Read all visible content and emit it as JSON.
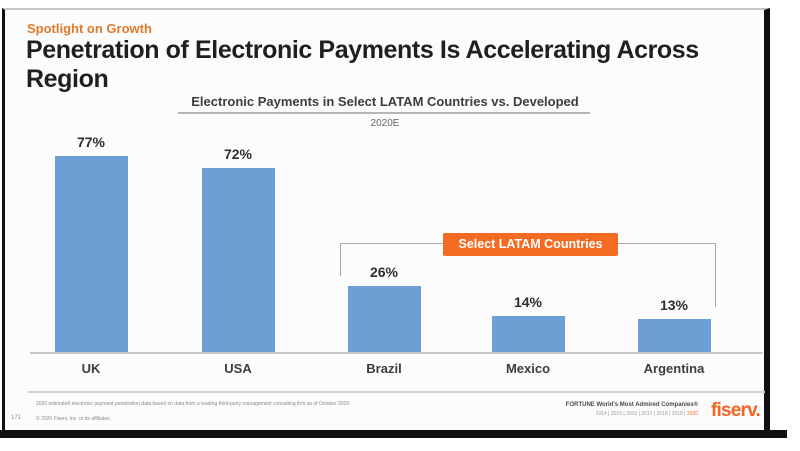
{
  "slide": {
    "eyebrow": "Spotlight on Growth",
    "title": "Penetration of Electronic Payments Is Accelerating Across Region"
  },
  "chart_data": {
    "type": "bar",
    "title": "Electronic Payments in Select LATAM Countries vs. Developed",
    "subtitle": "2020E",
    "categories": [
      "UK",
      "USA",
      "Brazil",
      "Mexico",
      "Argentina"
    ],
    "values": [
      77,
      72,
      26,
      14,
      13
    ],
    "unit": "%",
    "value_labels": [
      "77%",
      "72%",
      "26%",
      "14%",
      "13%"
    ],
    "ylim": [
      0,
      100
    ],
    "grid": false,
    "legend": "none",
    "bar_color": "#6d9ed4",
    "annotation": {
      "label": "Select LATAM Countries",
      "applies_to": [
        "Brazil",
        "Mexico",
        "Argentina"
      ]
    }
  },
  "footer": {
    "note": "2020 estimated electronic payment penetration data based on data from a leading third-party management consulting firm as of October 2020",
    "page_number": "171",
    "copyright": "© 2020 Fiserv, Inc. or its affiliates.",
    "award_line1": "FORTUNE World's Most Admired Companies®",
    "award_years": "2014 | 2015 | 2016 | 2017 | 2018 | 2019 |",
    "award_year_current": "2020",
    "logo_text": "fiserv."
  },
  "colors": {
    "accent_orange": "#f26b21",
    "bar_blue": "#6d9ed4"
  }
}
